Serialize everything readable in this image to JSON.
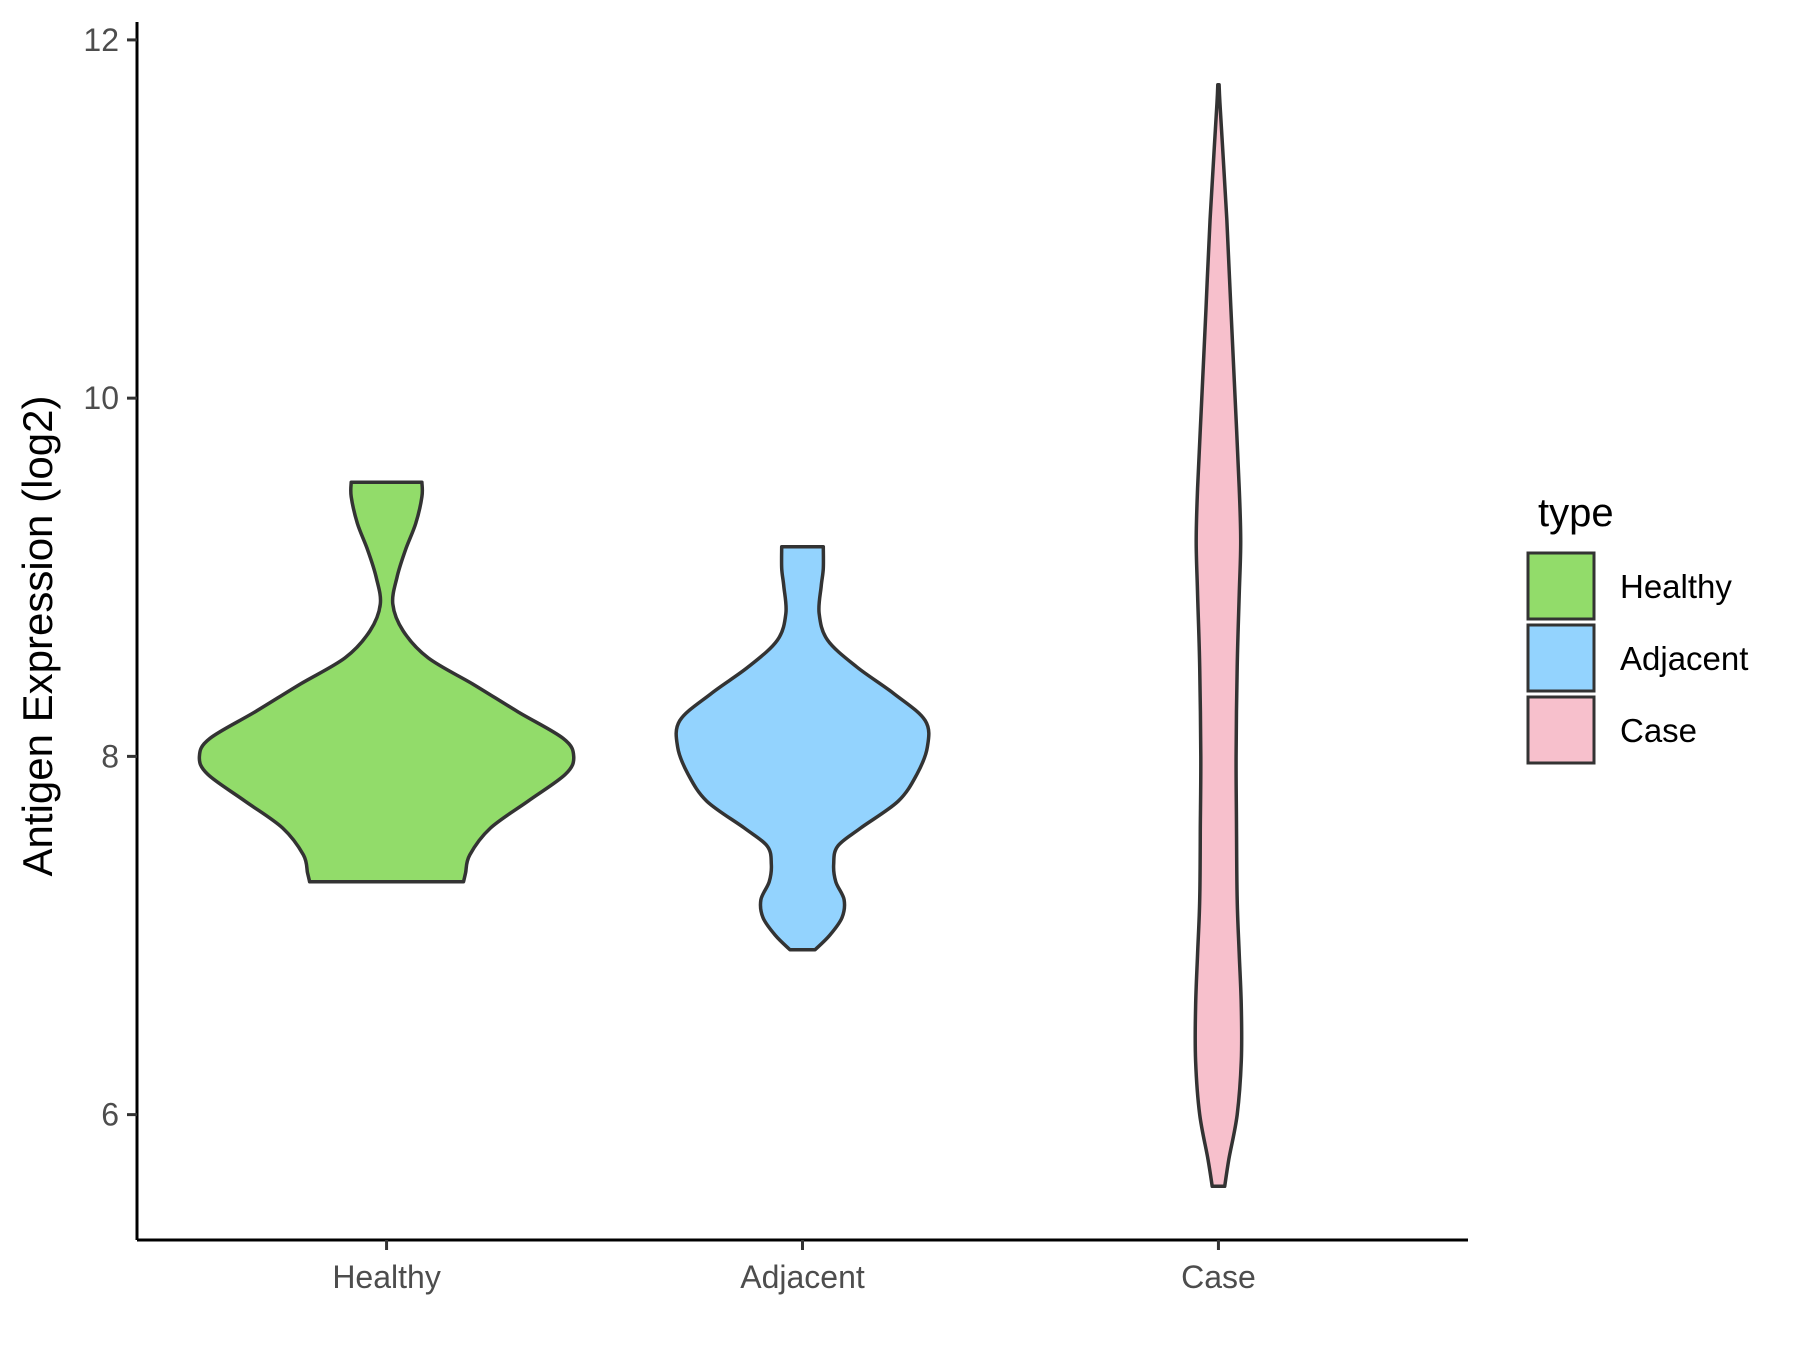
{
  "chart_data": {
    "type": "violin",
    "xlabel": "",
    "ylabel": "Antigen Expression (log2)",
    "ylim": [
      5.3,
      12.1
    ],
    "yticks": [
      6,
      8,
      10,
      12
    ],
    "categories": [
      "Healthy",
      "Adjacent",
      "Case"
    ],
    "grid": false,
    "legend": {
      "title": "type",
      "position": "right",
      "entries": [
        "Healthy",
        "Adjacent",
        "Case"
      ]
    },
    "colors": {
      "Healthy": "#92dc6a",
      "Adjacent": "#93d3fe",
      "Case": "#f7c0cc",
      "outline": "#333333"
    },
    "series": [
      {
        "name": "Healthy",
        "min": 7.3,
        "max": 9.53,
        "profile": [
          [
            7.3,
            0.37
          ],
          [
            7.35,
            0.38
          ],
          [
            7.45,
            0.4
          ],
          [
            7.6,
            0.5
          ],
          [
            7.75,
            0.68
          ],
          [
            7.9,
            0.86
          ],
          [
            8.0,
            0.9
          ],
          [
            8.1,
            0.85
          ],
          [
            8.25,
            0.63
          ],
          [
            8.4,
            0.42
          ],
          [
            8.55,
            0.2
          ],
          [
            8.7,
            0.08
          ],
          [
            8.85,
            0.03
          ],
          [
            9.0,
            0.05
          ],
          [
            9.15,
            0.09
          ],
          [
            9.3,
            0.14
          ],
          [
            9.45,
            0.17
          ],
          [
            9.53,
            0.17
          ]
        ]
      },
      {
        "name": "Adjacent",
        "min": 6.92,
        "max": 9.17,
        "profile": [
          [
            6.92,
            0.06
          ],
          [
            7.0,
            0.13
          ],
          [
            7.1,
            0.19
          ],
          [
            7.2,
            0.2
          ],
          [
            7.3,
            0.16
          ],
          [
            7.4,
            0.15
          ],
          [
            7.5,
            0.17
          ],
          [
            7.6,
            0.28
          ],
          [
            7.75,
            0.46
          ],
          [
            7.9,
            0.55
          ],
          [
            8.05,
            0.6
          ],
          [
            8.2,
            0.59
          ],
          [
            8.35,
            0.44
          ],
          [
            8.5,
            0.26
          ],
          [
            8.65,
            0.12
          ],
          [
            8.8,
            0.08
          ],
          [
            8.95,
            0.09
          ],
          [
            9.05,
            0.1
          ],
          [
            9.17,
            0.1
          ]
        ]
      },
      {
        "name": "Case",
        "min": 5.6,
        "max": 11.75,
        "profile": [
          [
            5.6,
            0.03
          ],
          [
            5.75,
            0.05
          ],
          [
            6.0,
            0.09
          ],
          [
            6.3,
            0.11
          ],
          [
            6.6,
            0.11
          ],
          [
            6.9,
            0.1
          ],
          [
            7.2,
            0.09
          ],
          [
            7.6,
            0.087
          ],
          [
            8.0,
            0.085
          ],
          [
            8.5,
            0.09
          ],
          [
            8.9,
            0.1
          ],
          [
            9.2,
            0.107
          ],
          [
            9.5,
            0.1
          ],
          [
            10.0,
            0.08
          ],
          [
            10.5,
            0.06
          ],
          [
            11.0,
            0.04
          ],
          [
            11.4,
            0.02
          ],
          [
            11.65,
            0.007
          ],
          [
            11.75,
            0.003
          ]
        ]
      }
    ]
  }
}
